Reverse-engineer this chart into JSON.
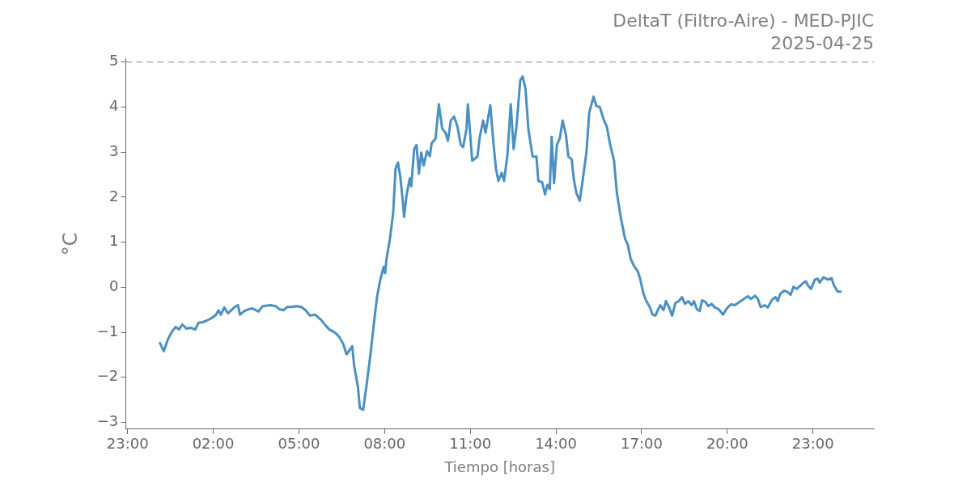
{
  "chart_data": {
    "type": "line",
    "title": "DeltaT (Filtro-Aire) - MED-PJIC",
    "subtitle": "2025-04-25",
    "xlabel": "Tiempo [horas]",
    "ylabel": "°C",
    "x": [
      "2025-04-25T00:08",
      "2025-04-25T00:16",
      "2025-04-25T00:25",
      "2025-04-25T00:33",
      "2025-04-25T00:41",
      "2025-04-25T00:48",
      "2025-04-25T00:55",
      "2025-04-25T01:04",
      "2025-04-25T01:12",
      "2025-04-25T01:22",
      "2025-04-25T01:29",
      "2025-04-25T01:37",
      "2025-04-25T01:46",
      "2025-04-25T01:56",
      "2025-04-25T02:06",
      "2025-04-25T02:11",
      "2025-04-25T02:16",
      "2025-04-25T02:23",
      "2025-04-25T02:31",
      "2025-04-25T02:40",
      "2025-04-25T02:45",
      "2025-04-25T02:52",
      "2025-04-25T02:56",
      "2025-04-25T03:05",
      "2025-04-25T03:14",
      "2025-04-25T03:22",
      "2025-04-25T03:35",
      "2025-04-25T03:44",
      "2025-04-25T04:01",
      "2025-04-25T04:11",
      "2025-04-25T04:19",
      "2025-04-25T04:28",
      "2025-04-25T04:35",
      "2025-04-25T04:45",
      "2025-04-25T04:55",
      "2025-04-25T05:05",
      "2025-04-25T05:14",
      "2025-04-25T05:23",
      "2025-04-25T05:34",
      "2025-04-25T05:46",
      "2025-04-25T05:56",
      "2025-04-25T06:04",
      "2025-04-25T06:16",
      "2025-04-25T06:25",
      "2025-04-25T06:33",
      "2025-04-25T06:40",
      "2025-04-25T06:46",
      "2025-04-25T06:52",
      "2025-04-25T06:56",
      "2025-04-25T07:04",
      "2025-04-25T07:08",
      "2025-04-25T07:15",
      "2025-04-25T07:22",
      "2025-04-25T07:31",
      "2025-04-25T07:37",
      "2025-04-25T07:44",
      "2025-04-25T07:51",
      "2025-04-25T07:58",
      "2025-04-25T08:01",
      "2025-04-25T08:04",
      "2025-04-25T08:11",
      "2025-04-25T08:18",
      "2025-04-25T08:23",
      "2025-04-25T08:28",
      "2025-04-25T08:33",
      "2025-04-25T08:38",
      "2025-04-25T08:41",
      "2025-04-25T08:46",
      "2025-04-25T08:53",
      "2025-04-25T08:56",
      "2025-04-25T09:02",
      "2025-04-25T09:07",
      "2025-04-25T09:12",
      "2025-04-25T09:17",
      "2025-04-25T09:22",
      "2025-04-25T09:29",
      "2025-04-25T09:35",
      "2025-04-25T09:39",
      "2025-04-25T09:47",
      "2025-04-25T09:54",
      "2025-04-25T10:01",
      "2025-04-25T10:08",
      "2025-04-25T10:13",
      "2025-04-25T10:19",
      "2025-04-25T10:26",
      "2025-04-25T10:33",
      "2025-04-25T10:40",
      "2025-04-25T10:45",
      "2025-04-25T10:52",
      "2025-04-25T10:55",
      "2025-04-25T11:04",
      "2025-04-25T11:15",
      "2025-04-25T11:20",
      "2025-04-25T11:27",
      "2025-04-25T11:32",
      "2025-04-25T11:42",
      "2025-04-25T11:49",
      "2025-04-25T11:54",
      "2025-04-25T11:59",
      "2025-04-25T12:06",
      "2025-04-25T12:11",
      "2025-04-25T12:18",
      "2025-04-25T12:25",
      "2025-04-25T12:31",
      "2025-04-25T12:37",
      "2025-04-25T12:45",
      "2025-04-25T12:50",
      "2025-04-25T12:56",
      "2025-04-25T13:02",
      "2025-04-25T13:11",
      "2025-04-25T13:19",
      "2025-04-25T13:23",
      "2025-04-25T13:31",
      "2025-04-25T13:37",
      "2025-04-25T13:42",
      "2025-04-25T13:47",
      "2025-04-25T13:51",
      "2025-04-25T13:56",
      "2025-04-25T14:02",
      "2025-04-25T14:08",
      "2025-04-25T14:14",
      "2025-04-25T14:21",
      "2025-04-25T14:26",
      "2025-04-25T14:33",
      "2025-04-25T14:38",
      "2025-04-25T14:43",
      "2025-04-25T14:50",
      "2025-04-25T14:56",
      "2025-04-25T15:04",
      "2025-04-25T15:10",
      "2025-04-25T15:19",
      "2025-04-25T15:25",
      "2025-04-25T15:32",
      "2025-04-25T15:41",
      "2025-04-25T15:47",
      "2025-04-25T15:54",
      "2025-04-25T16:02",
      "2025-04-25T16:08",
      "2025-04-25T16:16",
      "2025-04-25T16:25",
      "2025-04-25T16:31",
      "2025-04-25T16:37",
      "2025-04-25T16:43",
      "2025-04-25T16:52",
      "2025-04-25T16:56",
      "2025-04-25T17:04",
      "2025-04-25T17:10",
      "2025-04-25T17:17",
      "2025-04-25T17:23",
      "2025-04-25T17:29",
      "2025-04-25T17:34",
      "2025-04-25T17:39",
      "2025-04-25T17:46",
      "2025-04-25T17:51",
      "2025-04-25T17:58",
      "2025-04-25T18:04",
      "2025-04-25T18:11",
      "2025-04-25T18:18",
      "2025-04-25T18:25",
      "2025-04-25T18:31",
      "2025-04-25T18:38",
      "2025-04-25T18:45",
      "2025-04-25T18:50",
      "2025-04-25T18:56",
      "2025-04-25T19:02",
      "2025-04-25T19:07",
      "2025-04-25T19:14",
      "2025-04-25T19:20",
      "2025-04-25T19:27",
      "2025-04-25T19:34",
      "2025-04-25T19:42",
      "2025-04-25T19:51",
      "2025-04-25T19:59",
      "2025-04-25T20:08",
      "2025-04-25T20:16",
      "2025-04-25T20:25",
      "2025-04-25T20:35",
      "2025-04-25T20:43",
      "2025-04-25T20:50",
      "2025-04-25T20:58",
      "2025-04-25T21:04",
      "2025-04-25T21:10",
      "2025-04-25T21:19",
      "2025-04-25T21:25",
      "2025-04-25T21:34",
      "2025-04-25T21:41",
      "2025-04-25T21:46",
      "2025-04-25T21:51",
      "2025-04-25T21:59",
      "2025-04-25T22:06",
      "2025-04-25T22:13",
      "2025-04-25T22:19",
      "2025-04-25T22:26",
      "2025-04-25T22:33",
      "2025-04-25T22:40",
      "2025-04-25T22:45",
      "2025-04-25T22:50",
      "2025-04-25T22:56",
      "2025-04-25T23:04",
      "2025-04-25T23:10",
      "2025-04-25T23:14",
      "2025-04-25T23:22",
      "2025-04-25T23:31",
      "2025-04-25T23:39",
      "2025-04-25T23:44",
      "2025-04-25T23:52",
      "2025-04-25T23:58"
    ],
    "series": [
      {
        "color": "#4a90c2",
        "values": [
          -1.24,
          -1.42,
          -1.15,
          -0.99,
          -0.88,
          -0.94,
          -0.83,
          -0.92,
          -0.9,
          -0.94,
          -0.79,
          -0.78,
          -0.74,
          -0.69,
          -0.61,
          -0.51,
          -0.61,
          -0.45,
          -0.58,
          -0.49,
          -0.44,
          -0.4,
          -0.61,
          -0.53,
          -0.49,
          -0.47,
          -0.54,
          -0.42,
          -0.4,
          -0.42,
          -0.49,
          -0.51,
          -0.44,
          -0.44,
          -0.42,
          -0.44,
          -0.51,
          -0.63,
          -0.61,
          -0.72,
          -0.85,
          -0.94,
          -1.01,
          -1.11,
          -1.26,
          -1.49,
          -1.4,
          -1.31,
          -1.74,
          -2.22,
          -2.68,
          -2.72,
          -2.18,
          -1.43,
          -0.85,
          -0.22,
          0.17,
          0.45,
          0.31,
          0.63,
          1.06,
          1.65,
          2.63,
          2.77,
          2.45,
          1.93,
          1.56,
          2.04,
          2.42,
          2.24,
          3.06,
          3.16,
          2.52,
          2.99,
          2.7,
          3.02,
          2.91,
          3.2,
          3.3,
          4.06,
          3.52,
          3.43,
          3.25,
          3.7,
          3.79,
          3.57,
          3.16,
          3.11,
          3.52,
          4.06,
          2.81,
          2.9,
          3.34,
          3.7,
          3.43,
          4.04,
          3.16,
          2.63,
          2.36,
          2.54,
          2.36,
          2.93,
          4.06,
          3.07,
          3.56,
          4.59,
          4.68,
          4.41,
          3.52,
          2.9,
          2.9,
          2.36,
          2.33,
          2.06,
          2.27,
          2.18,
          3.34,
          2.31,
          3.16,
          3.3,
          3.7,
          3.38,
          2.9,
          2.84,
          2.36,
          2.09,
          1.92,
          2.36,
          2.99,
          3.88,
          4.23,
          4.02,
          4.0,
          3.7,
          3.56,
          3.16,
          2.81,
          2.09,
          1.56,
          1.08,
          0.94,
          0.63,
          0.49,
          0.35,
          0.22,
          -0.15,
          -0.31,
          -0.44,
          -0.61,
          -0.63,
          -0.51,
          -0.4,
          -0.51,
          -0.31,
          -0.45,
          -0.63,
          -0.35,
          -0.31,
          -0.22,
          -0.37,
          -0.31,
          -0.4,
          -0.31,
          -0.49,
          -0.53,
          -0.29,
          -0.33,
          -0.42,
          -0.37,
          -0.45,
          -0.49,
          -0.61,
          -0.47,
          -0.38,
          -0.4,
          -0.33,
          -0.26,
          -0.2,
          -0.26,
          -0.19,
          -0.26,
          -0.44,
          -0.4,
          -0.45,
          -0.28,
          -0.22,
          -0.31,
          -0.15,
          -0.08,
          -0.1,
          -0.17,
          0.01,
          -0.04,
          0.03,
          0.1,
          0.13,
          0.03,
          -0.04,
          0.17,
          0.19,
          0.1,
          0.22,
          0.17,
          0.2,
          0.04,
          -0.1,
          -0.1
        ]
      }
    ],
    "xlim": [
      "2025-04-24T22:56",
      "2025-04-26T01:08"
    ],
    "xticks": [
      {
        "value": "2025-04-24T23:00",
        "label": "23:00"
      },
      {
        "value": "2025-04-25T02:00",
        "label": "02:00"
      },
      {
        "value": "2025-04-25T05:00",
        "label": "05:00"
      },
      {
        "value": "2025-04-25T08:00",
        "label": "08:00"
      },
      {
        "value": "2025-04-25T11:00",
        "label": "11:00"
      },
      {
        "value": "2025-04-25T14:00",
        "label": "14:00"
      },
      {
        "value": "2025-04-25T17:00",
        "label": "17:00"
      },
      {
        "value": "2025-04-25T20:00",
        "label": "20:00"
      },
      {
        "value": "2025-04-25T23:00",
        "label": "23:00"
      }
    ],
    "ylim": [
      -3.15,
      5.07
    ],
    "yticks": [
      {
        "value": -3,
        "label": "−3"
      },
      {
        "value": -2,
        "label": "−2"
      },
      {
        "value": -1,
        "label": "−1"
      },
      0,
      1,
      2,
      3,
      4,
      5
    ],
    "ref_lines": [
      {
        "axis": "y",
        "value": 5,
        "color": "#b3b3b3",
        "line_style": "dashed"
      }
    ],
    "grid": false,
    "legend": false,
    "marker": "none",
    "line_style": "solid"
  }
}
